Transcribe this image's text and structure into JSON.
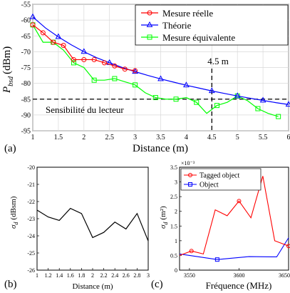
{
  "chart_data": [
    {
      "id": "a",
      "type": "line",
      "panel_label": "(a)",
      "xlabel": "Distance (m)",
      "ylabel": "P_bsd (dBm)",
      "ylabel_main": "P",
      "ylabel_sub": "bsd",
      "ylabel_unit": "(dBm)",
      "xlim": [
        1,
        6
      ],
      "ylim": [
        -95,
        -55
      ],
      "xticks": [
        1,
        1.5,
        2,
        2.5,
        3,
        3.5,
        4,
        4.5,
        5,
        5.5,
        6
      ],
      "yticks": [
        -95,
        -90,
        -85,
        -80,
        -75,
        -70,
        -65,
        -60,
        -55
      ],
      "grid": true,
      "legend_position": "top-right",
      "series": [
        {
          "name": "Mesure réelle",
          "color": "#ff0000",
          "marker": "circle",
          "x": [
            1.0,
            1.2,
            1.4,
            1.6,
            1.8,
            2.0,
            2.2,
            2.4,
            2.6,
            2.8,
            3.0
          ],
          "y": [
            -61.5,
            -64,
            -67,
            -68,
            -72.5,
            -72.5,
            -72.5,
            -73.5,
            -74.5,
            -75.5,
            -76
          ]
        },
        {
          "name": "Théorie",
          "color": "#0000ff",
          "marker": "triangle",
          "x": [
            1.0,
            1.25,
            1.5,
            1.75,
            2.0,
            2.25,
            2.5,
            2.75,
            3.0,
            3.25,
            3.5,
            3.75,
            4.0,
            4.25,
            4.5,
            4.75,
            5.0,
            5.25,
            5.5,
            5.75,
            6.0
          ],
          "y": [
            -59,
            -62.5,
            -65.3,
            -67.8,
            -70,
            -71.9,
            -73.5,
            -75,
            -76.3,
            -77.5,
            -78.6,
            -79.6,
            -80.6,
            -81.5,
            -82.4,
            -83.2,
            -84,
            -84.7,
            -85.4,
            -86.1,
            -86.7
          ]
        },
        {
          "name": "Mesure équivalente",
          "color": "#00ff00",
          "marker": "square",
          "x": [
            1.0,
            1.2,
            1.4,
            1.6,
            1.8,
            2.0,
            2.2,
            2.4,
            2.6,
            2.8,
            3.0,
            3.2,
            3.4,
            3.6,
            3.8,
            4.0,
            4.2,
            4.4,
            4.6,
            4.8,
            5.0,
            5.2,
            5.4,
            5.6,
            5.8
          ],
          "y": [
            -61.5,
            -67,
            -67,
            -69.5,
            -73.5,
            -75,
            -79,
            -79,
            -78.5,
            -79.5,
            -80.5,
            -83,
            -84.5,
            -85,
            -85,
            -84.5,
            -86,
            -89.5,
            -87,
            -86,
            -84,
            -85.5,
            -88,
            -89.5,
            -90.5
          ]
        }
      ],
      "annotations": {
        "threshold_y": -85,
        "threshold_label": "Sensibilité du lecteur",
        "distance_x": 4.5,
        "distance_label": "4.5 m"
      }
    },
    {
      "id": "b",
      "type": "line",
      "panel_label": "(b)",
      "xlabel": "Distance (m)",
      "ylabel": "σ_d (dBsm)",
      "ylabel_main": "σ",
      "ylabel_sub": "d",
      "ylabel_unit": "(dBsm)",
      "xlim": [
        1,
        3
      ],
      "ylim": [
        -26,
        -20
      ],
      "xticks": [
        1,
        1.2,
        1.4,
        1.6,
        1.8,
        2,
        2.2,
        2.4,
        2.6,
        2.8,
        3
      ],
      "yticks": [
        -26,
        -25,
        -24,
        -23,
        -22,
        -21,
        -20
      ],
      "grid": false,
      "series": [
        {
          "color": "#000000",
          "x": [
            1.0,
            1.2,
            1.4,
            1.6,
            1.8,
            2.0,
            2.2,
            2.4,
            2.6,
            2.8,
            3.0
          ],
          "y": [
            -22.5,
            -22.9,
            -23.1,
            -22.4,
            -22.7,
            -24.1,
            -23.8,
            -23.2,
            -23.6,
            -22.7,
            -24.3
          ]
        }
      ]
    },
    {
      "id": "c",
      "type": "line",
      "panel_label": "(c)",
      "xlabel": "Fréquence (MHz)",
      "ylabel": "σ_d (m²)",
      "ylabel_main": "σ",
      "ylabel_sub": "d",
      "ylabel_unit": "(m²)",
      "y_exponent": "×10⁻³",
      "xlim": [
        3540,
        3650
      ],
      "ylim": [
        0,
        0.0035
      ],
      "xticks": [
        3550,
        3600,
        3650
      ],
      "yticks": [
        0,
        0.0005,
        0.001,
        0.0015,
        0.002,
        0.0025,
        0.003,
        0.0035
      ],
      "ytick_labels": [
        "0",
        "0.5",
        "1",
        "1.5",
        "2",
        "2.5",
        "3",
        "3.5"
      ],
      "grid": false,
      "legend_position": "top-left",
      "series": [
        {
          "name": "Tagged object",
          "color": "#ff0000",
          "marker": "circle",
          "x": [
            3540,
            3552,
            3564,
            3576,
            3588,
            3600,
            3612,
            3624,
            3636,
            3650
          ],
          "y": [
            0.0005,
            0.00065,
            0.00055,
            0.00205,
            0.00185,
            0.00235,
            0.00178,
            0.0032,
            0.001,
            0.00082
          ]
        },
        {
          "name": "Object",
          "color": "#0000ff",
          "marker": "square",
          "x": [
            3540,
            3578,
            3610,
            3638,
            3650
          ],
          "y": [
            0.00055,
            0.00036,
            0.00046,
            0.00045,
            0.0011
          ]
        }
      ],
      "marker_indices": {
        "Tagged object": [
          1,
          5,
          9
        ],
        "Object": [
          1
        ]
      },
      "extra_red_points": [
        {
          "x": 3624,
          "y": 0.00098
        },
        {
          "x": 3636,
          "y": 0.00082
        },
        {
          "x": 3650,
          "y": 0.00085
        }
      ]
    }
  ]
}
